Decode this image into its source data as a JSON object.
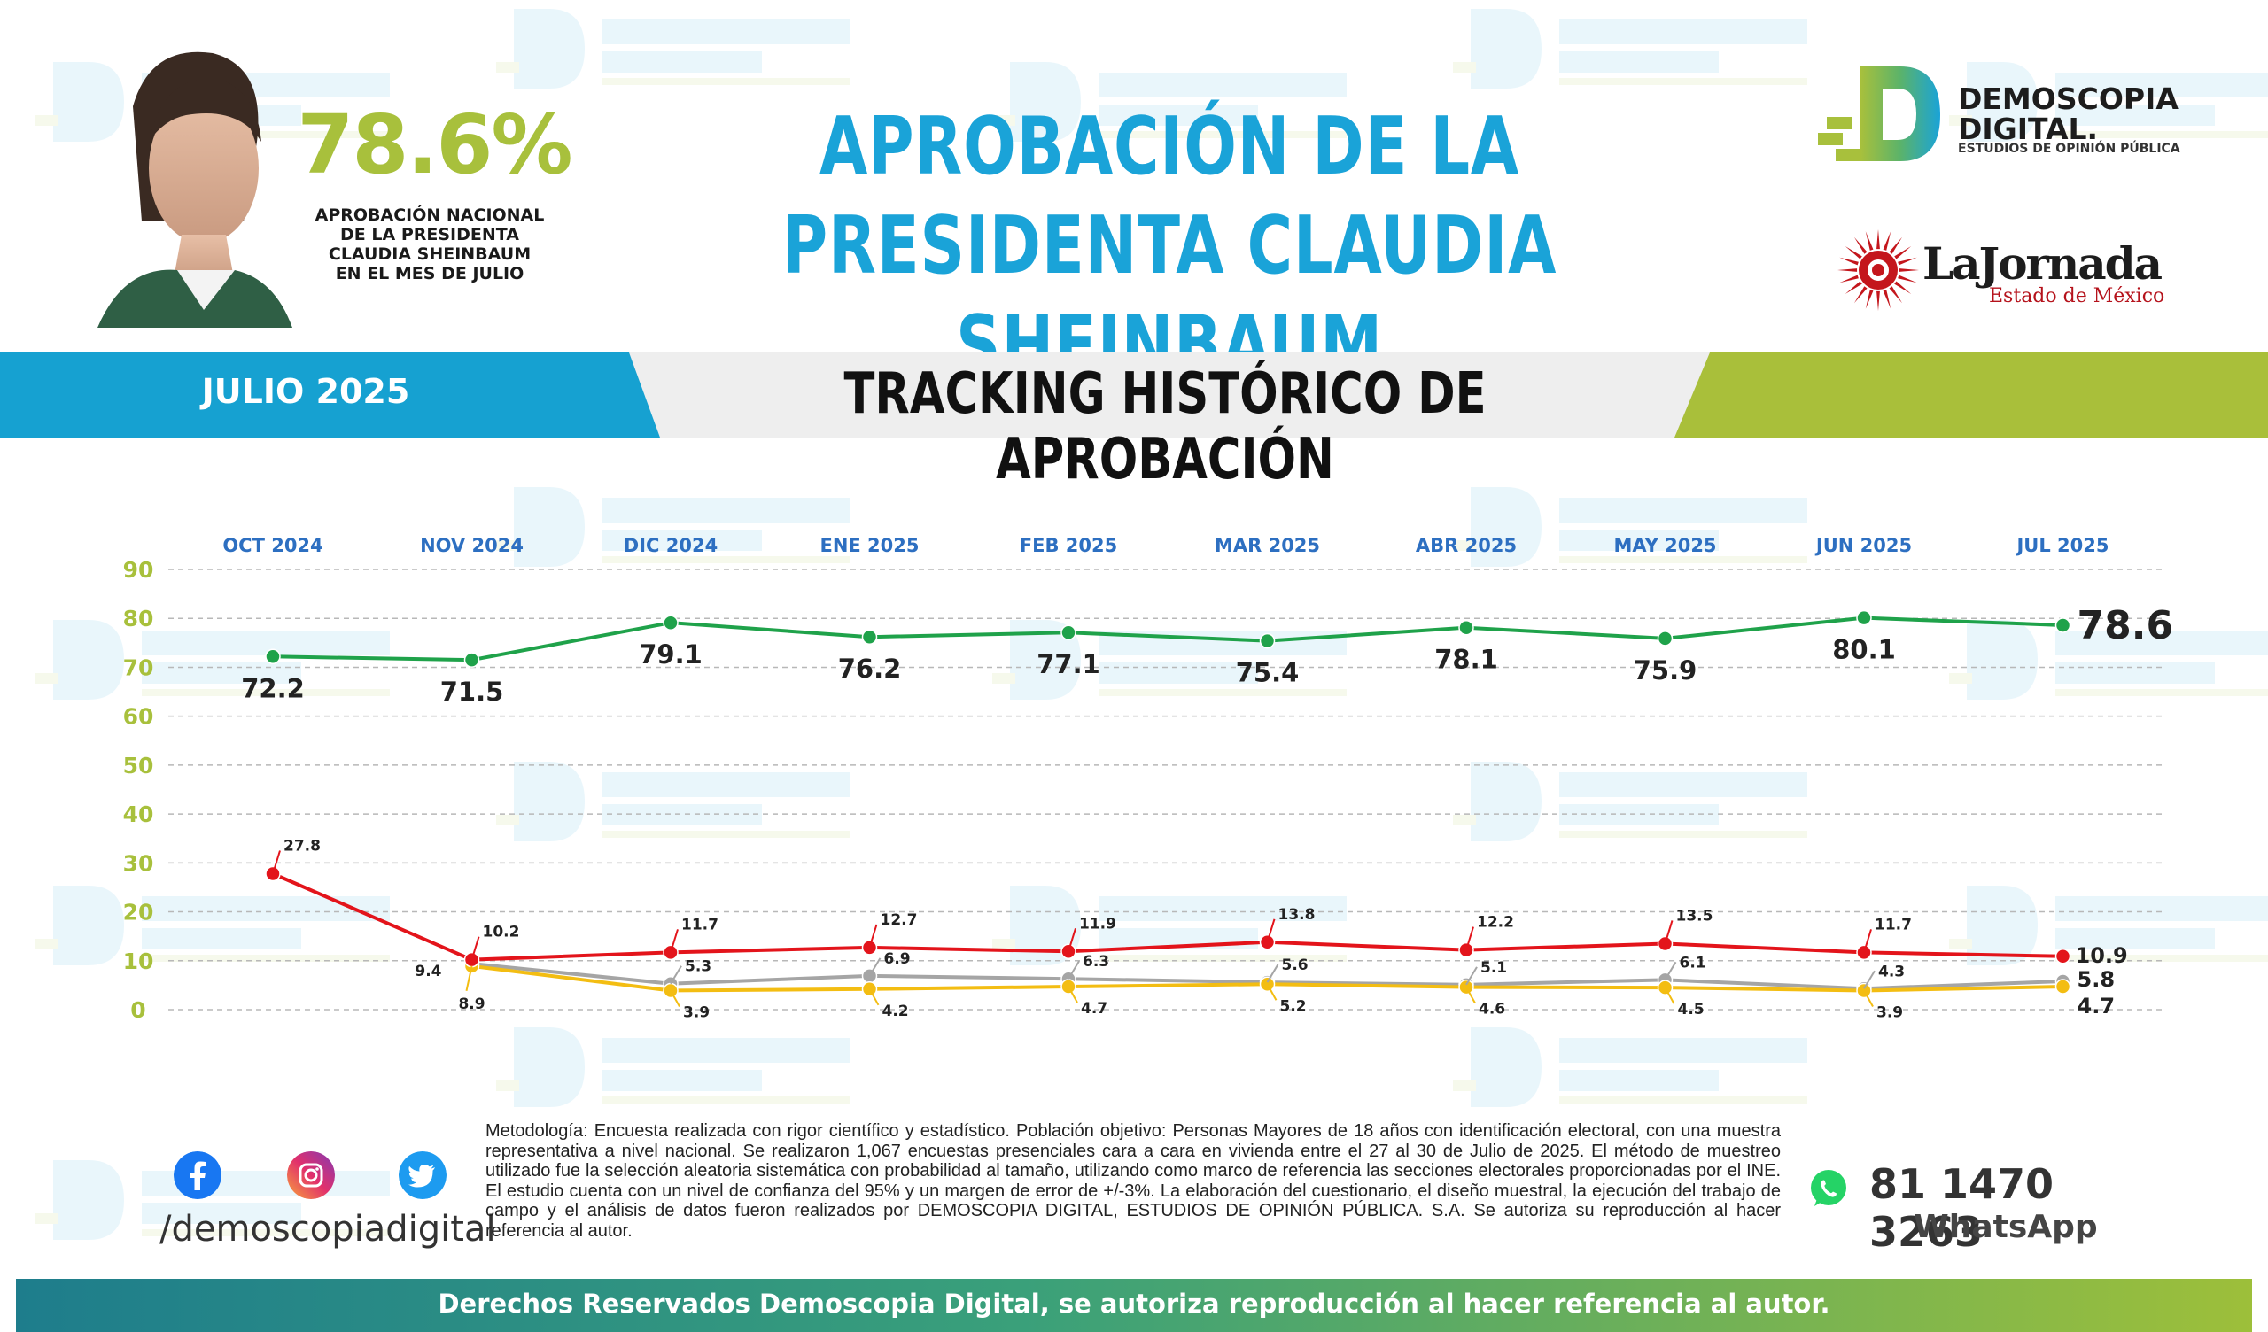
{
  "header": {
    "approval_value": "78.6%",
    "approval_caption": [
      "APROBACIÓN NACIONAL",
      "DE LA PRESIDENTA",
      "CLAUDIA SHEINBAUM",
      "EN EL MES DE JULIO"
    ],
    "title_line1": "APROBACIÓN DE LA",
    "title_line2": "PRESIDENTA CLAUDIA SHEINBAUM"
  },
  "logos": {
    "demoscopia_line1": "DEMOSCOPIA",
    "demoscopia_line2": "DIGITAL.",
    "demoscopia_sub": "ESTUDIOS DE OPINIÓN PÚBLICA",
    "jornada_name": "LaJornada",
    "jornada_sub": "Estado de México"
  },
  "band": {
    "date": "JULIO 2025",
    "title": "TRACKING HISTÓRICO DE APROBACIÓN"
  },
  "colors": {
    "blue": "#1aa3d8",
    "green_line": "#1fa24a",
    "red_line": "#e3141b",
    "gray_line": "#a5a5a5",
    "yellow_line": "#f3bd12",
    "olive": "#a8c03c",
    "month_label": "#2d6fc1"
  },
  "chart_data": {
    "type": "line",
    "categories": [
      "OCT 2024",
      "NOV 2024",
      "DIC 2024",
      "ENE 2025",
      "FEB 2025",
      "MAR 2025",
      "ABR 2025",
      "MAY 2025",
      "JUN 2025",
      "JUL 2025"
    ],
    "ylim": [
      0,
      90
    ],
    "yticks": [
      0,
      10,
      20,
      30,
      40,
      50,
      60,
      70,
      80,
      90
    ],
    "grid": true,
    "series": [
      {
        "key": "green",
        "values": [
          72.2,
          71.5,
          79.1,
          76.2,
          77.1,
          75.4,
          78.1,
          75.9,
          80.1,
          78.6
        ]
      },
      {
        "key": "red",
        "values": [
          27.8,
          10.2,
          11.7,
          12.7,
          11.9,
          13.8,
          12.2,
          13.5,
          11.7,
          10.9
        ]
      },
      {
        "key": "gray",
        "values": [
          null,
          9.4,
          5.3,
          6.9,
          6.3,
          5.6,
          5.1,
          6.1,
          4.3,
          5.8
        ]
      },
      {
        "key": "yellow",
        "values": [
          null,
          8.9,
          3.9,
          4.2,
          4.7,
          5.2,
          4.6,
          4.5,
          3.9,
          4.7
        ]
      }
    ]
  },
  "footer": {
    "social_handle": "/demoscopiadigital",
    "methodology": "Metodología: Encuesta realizada con rigor científico y estadístico. Población objetivo: Personas Mayores de 18 años con identificación electoral, con una muestra representativa a nivel nacional. Se realizaron 1,067 encuestas presenciales cara a cara en vivienda entre el 27 al 30 de Julio de 2025. El método de muestreo utilizado fue la selección aleatoria sistemática con probabilidad al tamaño, utilizando como marco de referencia las secciones electorales proporcionadas por el INE. El estudio cuenta con un nivel de confianza del 95% y un margen de error de +/-3%. La elaboración del cuestionario, el diseño muestral, la ejecución del trabajo de campo y el análisis de datos fueron realizados por DEMOSCOPIA DIGITAL, ESTUDIOS DE OPINIÓN PÚBLICA. S.A. Se autoriza su reproducción al hacer referencia al autor.",
    "whatsapp_number": "81 1470 3263",
    "whatsapp_label": "WhatsApp",
    "rights": "Derechos Reservados Demoscopia Digital, se autoriza reproducción al hacer referencia al autor."
  }
}
